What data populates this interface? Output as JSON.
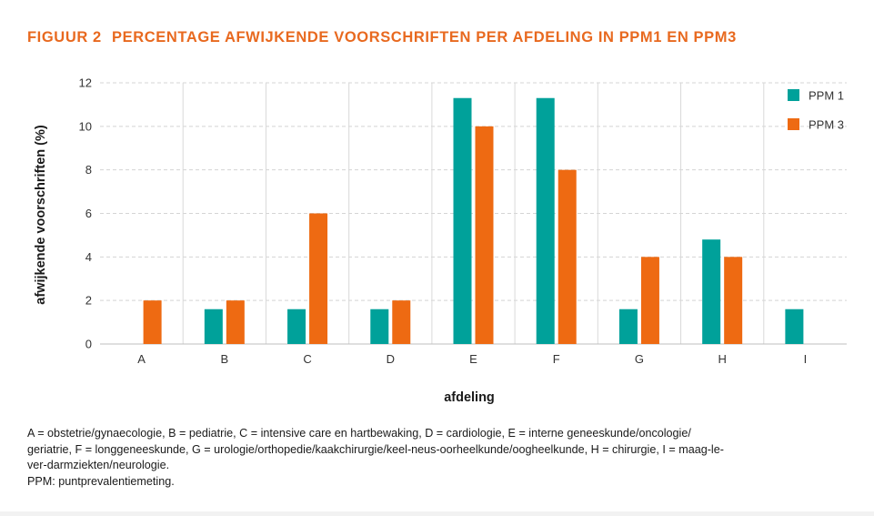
{
  "title": {
    "prefix": "FIGUUR 2",
    "text": "PERCENTAGE AFWIJKENDE VOORSCHRIFTEN PER AFDELING IN PPM1 EN PPM3"
  },
  "chart_data": {
    "type": "bar",
    "categories": [
      "A",
      "B",
      "C",
      "D",
      "E",
      "F",
      "G",
      "H",
      "I"
    ],
    "series": [
      {
        "name": "PPM 1",
        "color": "#00a19a",
        "values": [
          0,
          1.6,
          1.6,
          1.6,
          11.3,
          11.3,
          1.6,
          4.8,
          1.6
        ]
      },
      {
        "name": "PPM 3",
        "color": "#ee6a12",
        "values": [
          2,
          2,
          6,
          2,
          10,
          8,
          4,
          4,
          0
        ]
      }
    ],
    "xlabel": "afdeling",
    "ylabel": "afwijkende voorschriften (%)",
    "ylim": [
      0,
      12
    ],
    "yticks": [
      0,
      2,
      4,
      6,
      8,
      10,
      12
    ],
    "grid": true,
    "legend": "top-right"
  },
  "caption": {
    "lines": [
      "A = obstetrie/gynaecologie, B = pediatrie, C = intensive care en hartbewaking, D = cardiologie, E = interne geneeskunde/oncologie/",
      "geriatrie, F = longgeneeskunde, G = urologie/orthopedie/kaakchirurgie/keel-neus-oorheelkunde/oogheelkunde, H = chirurgie, I = maag-le-",
      "ver-darmziekten/neurologie.",
      "PPM: puntprevalentiemeting."
    ]
  }
}
